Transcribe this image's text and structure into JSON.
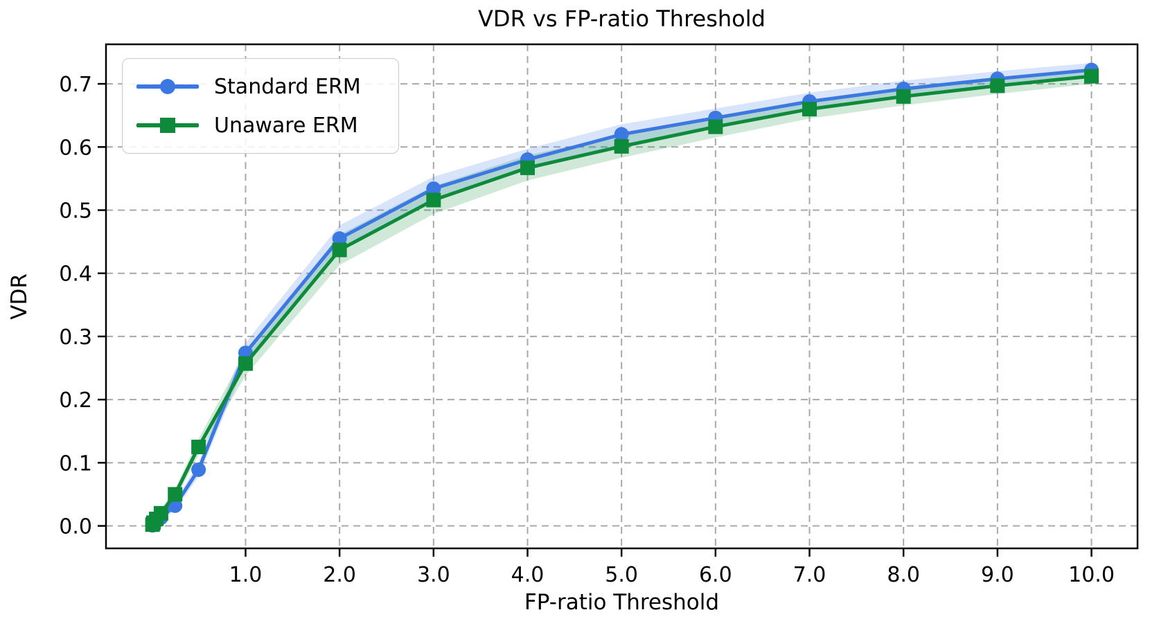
{
  "chart_data": {
    "type": "line",
    "title": "VDR vs FP-ratio Threshold",
    "xlabel": "FP-ratio Threshold",
    "ylabel": "VDR",
    "x": [
      0.01,
      0.02,
      0.05,
      0.1,
      0.25,
      0.5,
      1.0,
      2.0,
      3.0,
      4.0,
      5.0,
      6.0,
      7.0,
      8.0,
      9.0,
      10.0
    ],
    "series": [
      {
        "name": "Standard ERM",
        "color": "#3c78e2",
        "marker": "circle",
        "values": [
          0.001,
          0.003,
          0.007,
          0.013,
          0.032,
          0.089,
          0.274,
          0.455,
          0.534,
          0.58,
          0.62,
          0.646,
          0.672,
          0.692,
          0.708,
          0.722
        ],
        "band_halfwidth": [
          0.002,
          0.002,
          0.003,
          0.005,
          0.007,
          0.011,
          0.016,
          0.021,
          0.019,
          0.017,
          0.016,
          0.015,
          0.014,
          0.013,
          0.012,
          0.011
        ]
      },
      {
        "name": "Unaware ERM",
        "color": "#0e8a3b",
        "marker": "square",
        "values": [
          0.002,
          0.005,
          0.011,
          0.02,
          0.05,
          0.125,
          0.257,
          0.437,
          0.516,
          0.567,
          0.601,
          0.632,
          0.66,
          0.68,
          0.697,
          0.712
        ],
        "band_halfwidth": [
          0.002,
          0.003,
          0.004,
          0.006,
          0.009,
          0.013,
          0.019,
          0.024,
          0.022,
          0.02,
          0.018,
          0.017,
          0.015,
          0.014,
          0.013,
          0.012
        ]
      }
    ],
    "xticks": {
      "values": [
        1,
        2,
        3,
        4,
        5,
        6,
        7,
        8,
        9,
        10
      ],
      "labels": [
        "1.0",
        "2.0",
        "3.0",
        "4.0",
        "5.0",
        "6.0",
        "7.0",
        "8.0",
        "9.0",
        "10.0"
      ]
    },
    "yticks": {
      "values": [
        0.0,
        0.1,
        0.2,
        0.3,
        0.4,
        0.5,
        0.6,
        0.7
      ],
      "labels": [
        "0.0",
        "0.1",
        "0.2",
        "0.3",
        "0.4",
        "0.5",
        "0.6",
        "0.7"
      ]
    },
    "xlim": [
      -0.485,
      10.49
    ],
    "ylim": [
      -0.0356,
      0.7626
    ],
    "grid": true,
    "grid_color": "#a8a8a8",
    "axis_color": "#000000",
    "band_opacity": 0.2,
    "legend_position": "upper-left"
  }
}
